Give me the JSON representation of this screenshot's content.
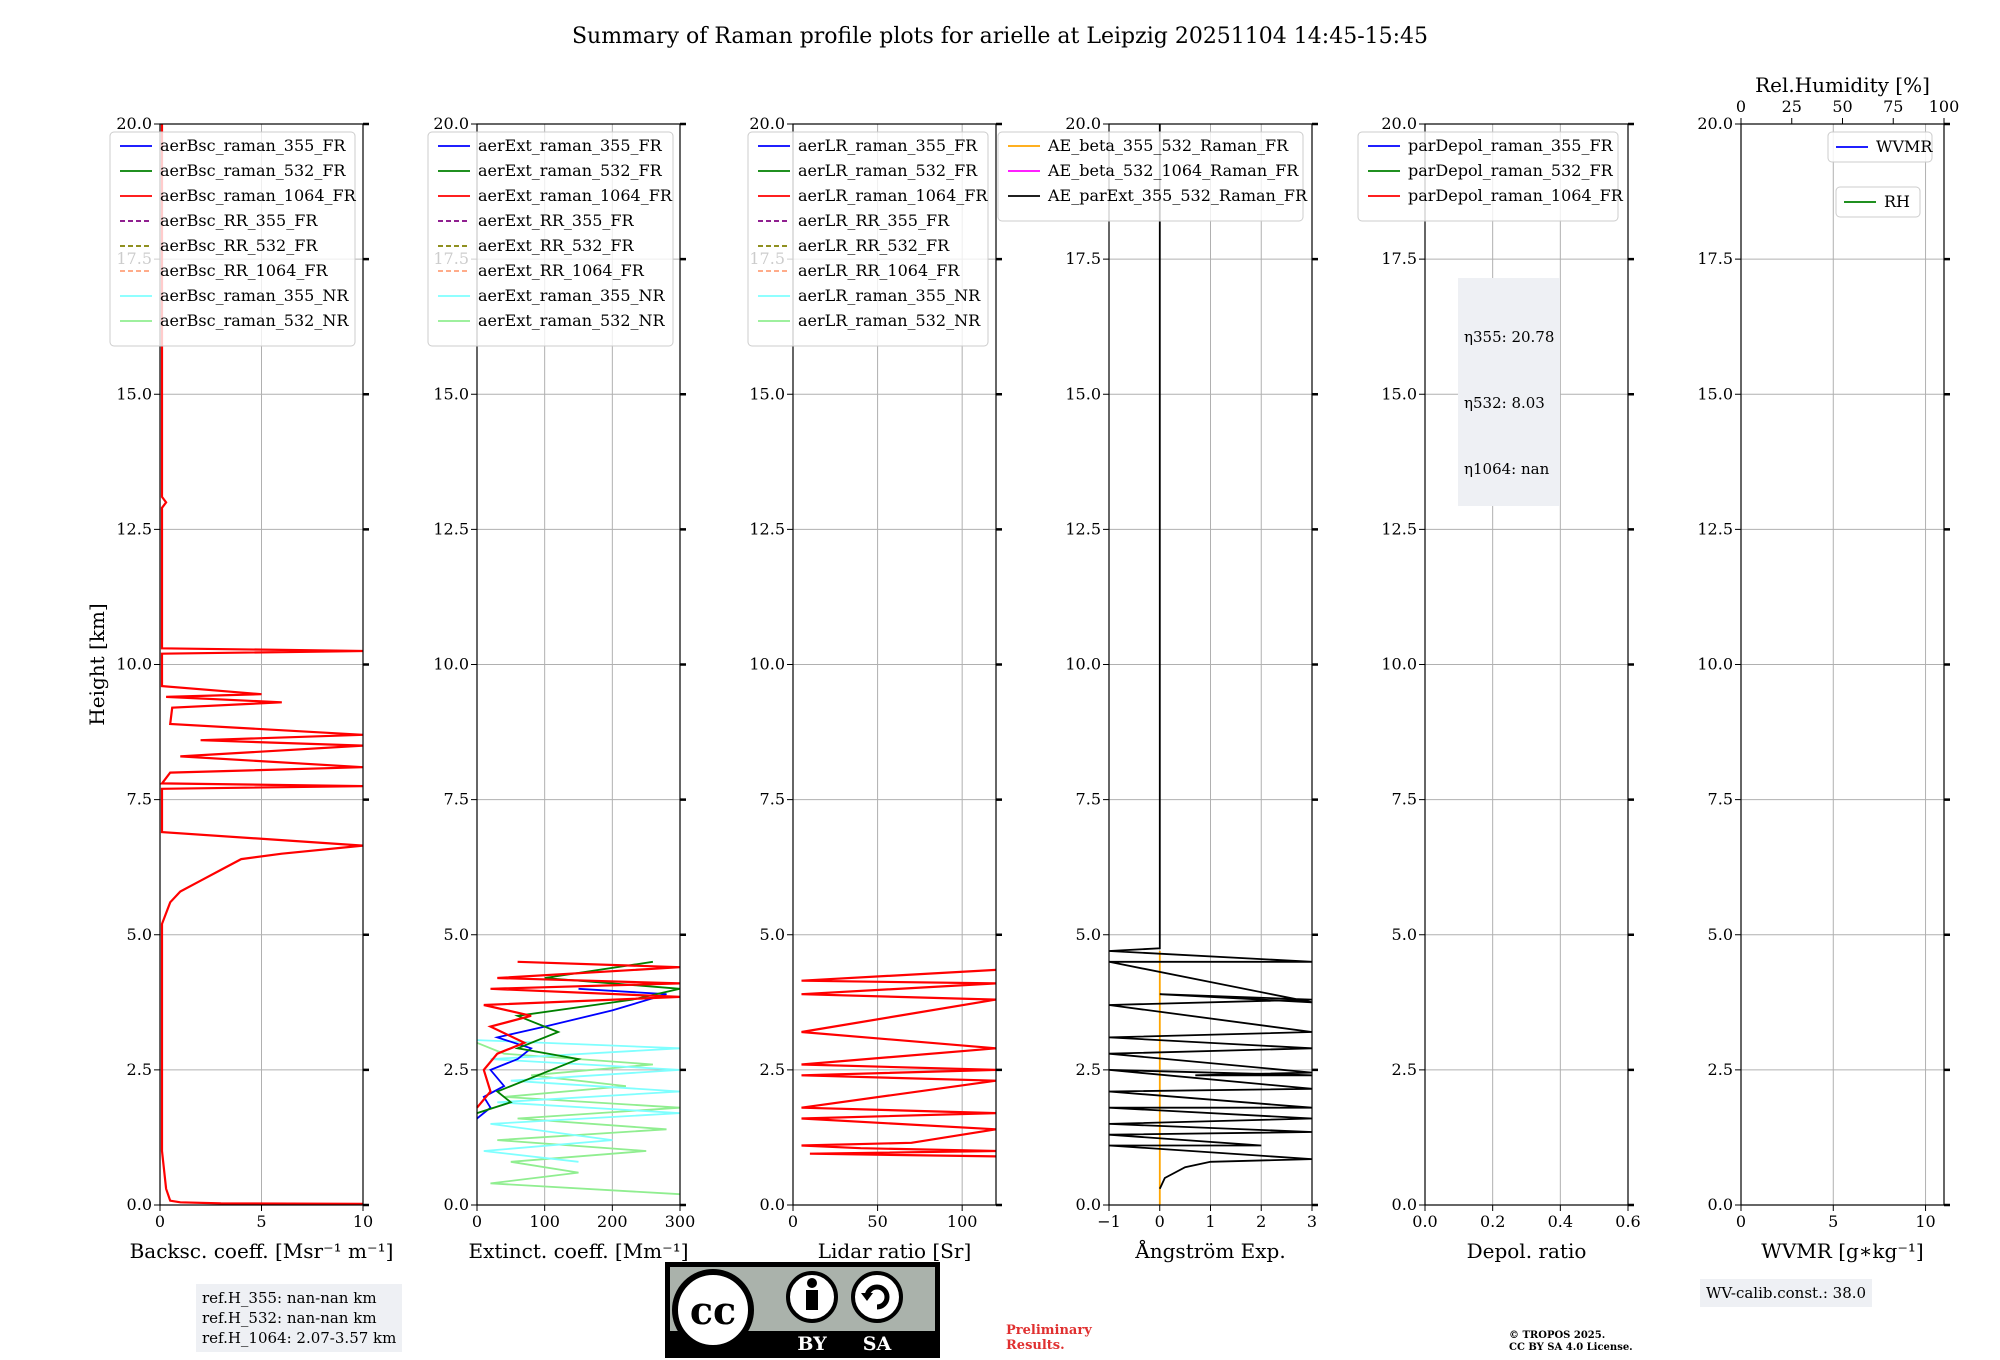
{
  "figure_title": "Summary of Raman profile plots for arielle at Leipzig 20251104 14:45-15:45",
  "colors": {
    "blue": "#0000ff",
    "green": "#008000",
    "red": "#ff0000",
    "purple": "#800080",
    "olive": "#808000",
    "salmon": "#ffa07a",
    "cyan": "#7fffff",
    "lightgreen": "#90ee90",
    "orange": "#ffa500",
    "magenta": "#ff00ff",
    "black": "#000000"
  },
  "chart_data": [
    {
      "type": "line",
      "panel": "backscatter",
      "xlabel": "Backsc. coeff. [Msr⁻¹ m⁻¹]",
      "ylabel": "Height [km]",
      "xlim": [
        0,
        10
      ],
      "ylim": [
        0,
        20
      ],
      "xticks": [
        "0",
        "5",
        "10"
      ],
      "yticks": [
        "0.0",
        "2.5",
        "5.0",
        "7.5",
        "10.0",
        "12.5",
        "15.0",
        "17.5",
        "20.0"
      ],
      "legend": [
        {
          "name": "aerBsc_raman_355_FR",
          "color": "blue",
          "dash": false
        },
        {
          "name": "aerBsc_raman_532_FR",
          "color": "green",
          "dash": false
        },
        {
          "name": "aerBsc_raman_1064_FR",
          "color": "red",
          "dash": false
        },
        {
          "name": "aerBsc_RR_355_FR",
          "color": "purple",
          "dash": true
        },
        {
          "name": "aerBsc_RR_532_FR",
          "color": "olive",
          "dash": true
        },
        {
          "name": "aerBsc_RR_1064_FR",
          "color": "salmon",
          "dash": true
        },
        {
          "name": "aerBsc_raman_355_NR",
          "color": "cyan",
          "dash": false
        },
        {
          "name": "aerBsc_raman_532_NR",
          "color": "lightgreen",
          "dash": false
        }
      ],
      "series": [
        {
          "name": "aerBsc_raman_1064_FR",
          "color": "red",
          "points": [
            [
              10,
              0.02
            ],
            [
              3,
              0.03
            ],
            [
              1,
              0.05
            ],
            [
              0.5,
              0.08
            ],
            [
              0.3,
              0.3
            ],
            [
              0.1,
              1
            ],
            [
              0.1,
              3
            ],
            [
              0.1,
              4
            ],
            [
              0.1,
              5.2
            ],
            [
              0.5,
              5.6
            ],
            [
              1,
              5.8
            ],
            [
              2,
              6.0
            ],
            [
              3,
              6.2
            ],
            [
              4,
              6.4
            ],
            [
              6,
              6.5
            ],
            [
              10,
              6.65
            ],
            [
              0.1,
              6.9
            ],
            [
              0.1,
              7.7
            ],
            [
              10,
              7.75
            ],
            [
              0.1,
              7.8
            ],
            [
              0.5,
              8.0
            ],
            [
              10,
              8.1
            ],
            [
              1,
              8.3
            ],
            [
              10,
              8.5
            ],
            [
              2,
              8.6
            ],
            [
              10,
              8.7
            ],
            [
              0.5,
              8.9
            ],
            [
              0.6,
              9.2
            ],
            [
              6,
              9.3
            ],
            [
              0.3,
              9.4
            ],
            [
              5,
              9.45
            ],
            [
              0.1,
              9.6
            ],
            [
              0.1,
              10.2
            ],
            [
              10,
              10.25
            ],
            [
              0.1,
              10.3
            ],
            [
              0.1,
              12.9
            ],
            [
              0.3,
              13.0
            ],
            [
              0.1,
              13.1
            ],
            [
              0.1,
              20
            ]
          ]
        }
      ]
    },
    {
      "type": "line",
      "panel": "extinction",
      "xlabel": "Extinct. coeff. [Mm⁻¹]",
      "ylabel": "",
      "xlim": [
        0,
        300
      ],
      "ylim": [
        0,
        20
      ],
      "xticks": [
        "0",
        "100",
        "200",
        "300"
      ],
      "yticks": [
        "0.0",
        "2.5",
        "5.0",
        "7.5",
        "10.0",
        "12.5",
        "15.0",
        "17.5",
        "20.0"
      ],
      "legend": [
        {
          "name": "aerExt_raman_355_FR",
          "color": "blue",
          "dash": false
        },
        {
          "name": "aerExt_raman_532_FR",
          "color": "green",
          "dash": false
        },
        {
          "name": "aerExt_raman_1064_FR",
          "color": "red",
          "dash": false
        },
        {
          "name": "aerExt_RR_355_FR",
          "color": "purple",
          "dash": true
        },
        {
          "name": "aerExt_RR_532_FR",
          "color": "olive",
          "dash": true
        },
        {
          "name": "aerExt_RR_1064_FR",
          "color": "salmon",
          "dash": true
        },
        {
          "name": "aerExt_raman_355_NR",
          "color": "cyan",
          "dash": false
        },
        {
          "name": "aerExt_raman_532_NR",
          "color": "lightgreen",
          "dash": false
        }
      ],
      "series": [
        {
          "name": "aerExt_raman_532_NR",
          "color": "lightgreen",
          "points": [
            [
              300,
              0.2
            ],
            [
              20,
              0.4
            ],
            [
              150,
              0.6
            ],
            [
              50,
              0.8
            ],
            [
              250,
              1.0
            ],
            [
              30,
              1.2
            ],
            [
              280,
              1.4
            ],
            [
              60,
              1.6
            ],
            [
              300,
              1.8
            ],
            [
              40,
              2.0
            ],
            [
              220,
              2.2
            ],
            [
              80,
              2.4
            ],
            [
              260,
              2.6
            ],
            [
              40,
              2.8
            ],
            [
              0,
              3.0
            ]
          ]
        },
        {
          "name": "aerExt_raman_355_NR",
          "color": "cyan",
          "points": [
            [
              150,
              0.8
            ],
            [
              10,
              1.0
            ],
            [
              200,
              1.2
            ],
            [
              20,
              1.5
            ],
            [
              300,
              1.7
            ],
            [
              30,
              1.9
            ],
            [
              300,
              2.1
            ],
            [
              50,
              2.3
            ],
            [
              300,
              2.5
            ],
            [
              20,
              2.7
            ],
            [
              300,
              2.9
            ],
            [
              0,
              3.05
            ]
          ]
        },
        {
          "name": "aerExt_raman_355_FR",
          "color": "blue",
          "points": [
            [
              0,
              1.6
            ],
            [
              20,
              1.8
            ],
            [
              10,
              2.0
            ],
            [
              40,
              2.2
            ],
            [
              20,
              2.5
            ],
            [
              60,
              2.7
            ],
            [
              80,
              2.9
            ],
            [
              30,
              3.1
            ],
            [
              100,
              3.3
            ],
            [
              200,
              3.6
            ],
            [
              280,
              3.9
            ],
            [
              150,
              4.0
            ]
          ]
        },
        {
          "name": "aerExt_raman_532_FR",
          "color": "green",
          "points": [
            [
              0,
              1.7
            ],
            [
              50,
              1.9
            ],
            [
              30,
              2.1
            ],
            [
              90,
              2.4
            ],
            [
              150,
              2.7
            ],
            [
              60,
              2.9
            ],
            [
              120,
              3.2
            ],
            [
              60,
              3.5
            ],
            [
              230,
              3.8
            ],
            [
              300,
              4.0
            ],
            [
              100,
              4.2
            ],
            [
              260,
              4.5
            ]
          ]
        },
        {
          "name": "aerExt_raman_1064_FR",
          "color": "red",
          "points": [
            [
              0,
              1.8
            ],
            [
              20,
              2.1
            ],
            [
              10,
              2.5
            ],
            [
              30,
              2.8
            ],
            [
              70,
              3.0
            ],
            [
              20,
              3.3
            ],
            [
              80,
              3.5
            ],
            [
              10,
              3.7
            ],
            [
              300,
              3.85
            ],
            [
              20,
              4.0
            ],
            [
              300,
              4.1
            ],
            [
              30,
              4.2
            ],
            [
              300,
              4.4
            ],
            [
              60,
              4.5
            ]
          ]
        }
      ]
    },
    {
      "type": "line",
      "panel": "lidar_ratio",
      "xlabel": "Lidar ratio [Sr]",
      "ylabel": "",
      "xlim": [
        0,
        120
      ],
      "ylim": [
        0,
        20
      ],
      "xticks": [
        "0",
        "50",
        "100"
      ],
      "yticks": [
        "0.0",
        "2.5",
        "5.0",
        "7.5",
        "10.0",
        "12.5",
        "15.0",
        "17.5",
        "20.0"
      ],
      "legend": [
        {
          "name": "aerLR_raman_355_FR",
          "color": "blue",
          "dash": false
        },
        {
          "name": "aerLR_raman_532_FR",
          "color": "green",
          "dash": false
        },
        {
          "name": "aerLR_raman_1064_FR",
          "color": "red",
          "dash": false
        },
        {
          "name": "aerLR_RR_355_FR",
          "color": "purple",
          "dash": true
        },
        {
          "name": "aerLR_RR_532_FR",
          "color": "olive",
          "dash": true
        },
        {
          "name": "aerLR_RR_1064_FR",
          "color": "salmon",
          "dash": true
        },
        {
          "name": "aerLR_raman_355_NR",
          "color": "cyan",
          "dash": false
        },
        {
          "name": "aerLR_raman_532_NR",
          "color": "lightgreen",
          "dash": false
        }
      ],
      "series": [
        {
          "name": "aerLR_raman_1064_FR",
          "color": "red",
          "points": [
            [
              120,
              0.9
            ],
            [
              10,
              0.95
            ],
            [
              120,
              1.0
            ],
            [
              40,
              1.05
            ],
            [
              5,
              1.1
            ],
            [
              70,
              1.15
            ],
            [
              120,
              1.4
            ],
            [
              5,
              1.6
            ],
            [
              120,
              1.7
            ],
            [
              5,
              1.8
            ],
            [
              120,
              2.3
            ],
            [
              5,
              2.4
            ],
            [
              120,
              2.5
            ],
            [
              5,
              2.6
            ],
            [
              120,
              2.9
            ],
            [
              5,
              3.2
            ],
            [
              120,
              3.8
            ],
            [
              5,
              3.9
            ],
            [
              120,
              4.1
            ],
            [
              5,
              4.15
            ],
            [
              120,
              4.35
            ]
          ]
        }
      ]
    },
    {
      "type": "line",
      "panel": "angstrom",
      "xlabel": "Ångström Exp.",
      "ylabel": "",
      "xlim": [
        -1,
        3
      ],
      "ylim": [
        0,
        20
      ],
      "xticks": [
        "−1",
        "0",
        "1",
        "2",
        "3"
      ],
      "yticks": [
        "0.0",
        "2.5",
        "5.0",
        "7.5",
        "10.0",
        "12.5",
        "15.0",
        "17.5",
        "20.0"
      ],
      "legend": [
        {
          "name": "AE_beta_355_532_Raman_FR",
          "color": "orange",
          "dash": false
        },
        {
          "name": "AE_beta_532_1064_Raman_FR",
          "color": "magenta",
          "dash": false
        },
        {
          "name": "AE_parExt_355_532_Raman_FR",
          "color": "black",
          "dash": false
        }
      ],
      "series": [
        {
          "name": "AE_beta_355_532_Raman_FR",
          "color": "orange",
          "points": [
            [
              0,
              0
            ],
            [
              0,
              4.7
            ]
          ]
        },
        {
          "name": "AE_parExt_355_532_Raman_FR",
          "color": "black",
          "points": [
            [
              0,
              0.3
            ],
            [
              0.1,
              0.5
            ],
            [
              0.5,
              0.7
            ],
            [
              1,
              0.8
            ],
            [
              3,
              0.85
            ],
            [
              -1,
              1.1
            ],
            [
              2,
              1.1
            ],
            [
              -1,
              1.3
            ],
            [
              3,
              1.35
            ],
            [
              -1,
              1.5
            ],
            [
              3,
              1.6
            ],
            [
              -1,
              1.8
            ],
            [
              3,
              1.8
            ],
            [
              -1,
              2.1
            ],
            [
              3,
              2.15
            ],
            [
              -1,
              2.5
            ],
            [
              3,
              2.4
            ],
            [
              0.7,
              2.4
            ],
            [
              3,
              2.45
            ],
            [
              -1,
              2.8
            ],
            [
              3,
              2.9
            ],
            [
              -1,
              3.1
            ],
            [
              3,
              3.2
            ],
            [
              -1,
              3.7
            ],
            [
              3,
              3.8
            ],
            [
              0,
              3.9
            ],
            [
              3,
              3.75
            ],
            [
              -1,
              4.5
            ],
            [
              3,
              4.5
            ],
            [
              -1,
              4.7
            ],
            [
              0,
              4.75
            ],
            [
              0,
              20
            ]
          ]
        }
      ]
    },
    {
      "type": "line",
      "panel": "depolarization",
      "xlabel": "Depol. ratio",
      "ylabel": "",
      "xlim": [
        0,
        0.6
      ],
      "ylim": [
        0,
        20
      ],
      "xticks": [
        "0.0",
        "0.2",
        "0.4",
        "0.6"
      ],
      "yticks": [
        "0.0",
        "2.5",
        "5.0",
        "7.5",
        "10.0",
        "12.5",
        "15.0",
        "17.5",
        "20.0"
      ],
      "legend": [
        {
          "name": "parDepol_raman_355_FR",
          "color": "blue",
          "dash": false
        },
        {
          "name": "parDepol_raman_532_FR",
          "color": "green",
          "dash": false
        },
        {
          "name": "parDepol_raman_1064_FR",
          "color": "red",
          "dash": false
        }
      ],
      "series": []
    },
    {
      "type": "line",
      "panel": "water_vapor",
      "xlabel": "WVMR [g∗kg⁻¹]",
      "ylabel": "",
      "top_xlabel": "Rel.Humidity [%]",
      "xlim": [
        0,
        11
      ],
      "ylim": [
        0,
        20
      ],
      "xticks": [
        "0",
        "5",
        "10"
      ],
      "top_xticks": [
        "0",
        "25",
        "50",
        "75",
        "100"
      ],
      "yticks": [
        "0.0",
        "2.5",
        "5.0",
        "7.5",
        "10.0",
        "12.5",
        "15.0",
        "17.5",
        "20.0"
      ],
      "legend": [
        {
          "name": "WVMR",
          "color": "blue",
          "dash": false
        },
        {
          "name": "RH",
          "color": "green",
          "dash": false
        }
      ],
      "series": []
    }
  ],
  "eta_lines": [
    "η355: 20.78",
    "η532: 8.03",
    "η1064: nan"
  ],
  "ref_heights": "ref.H_355: nan-nan km\nref.H_532: nan-nan km\nref.H_1064: 2.07-3.57 km",
  "wv_calib": "WV-calib.const.: 38.0",
  "preliminary": "Preliminary\nResults.",
  "copyright": "© TROPOS 2025.\nCC BY SA 4.0 License.",
  "license_badge": {
    "cc": "cc",
    "by": "BY",
    "sa": "SA"
  }
}
